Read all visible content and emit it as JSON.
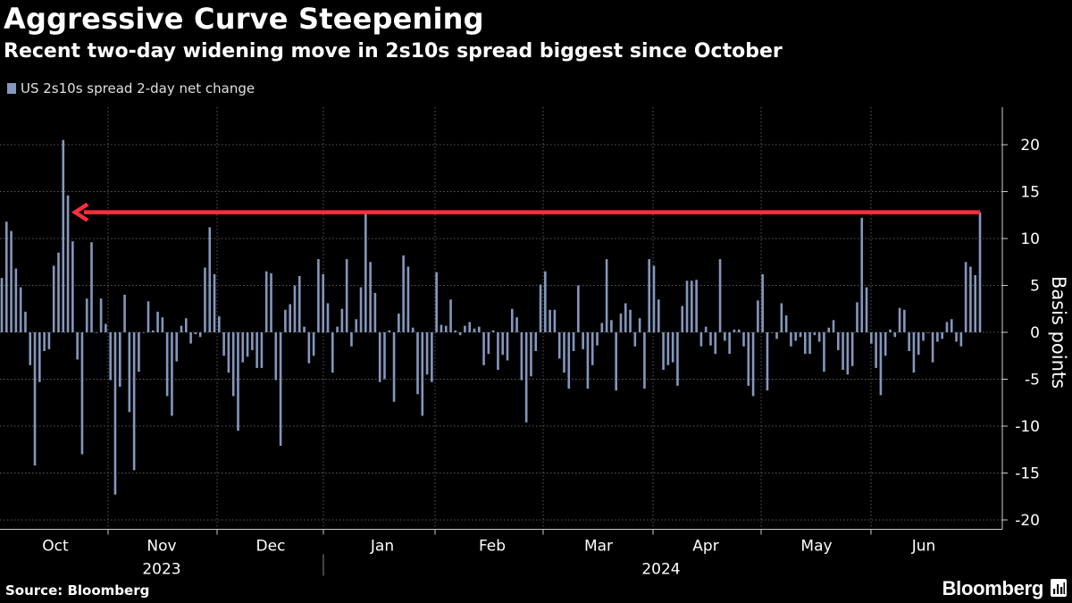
{
  "title": "Aggressive Curve Steepening",
  "subtitle": "Recent two-day widening move in 2s10s spread biggest since October",
  "source": "Source: Bloomberg",
  "brand": "Bloomberg",
  "colors": {
    "background": "#000000",
    "bar": "#8497bd",
    "arrow": "#ff2e3b",
    "text": "#ffffff",
    "grid": "#5a5a5a"
  },
  "chart_data": {
    "type": "bar",
    "title": "Aggressive Curve Steepening",
    "subtitle": "Recent two-day widening move in 2s10s spread biggest since October",
    "legend": [
      "US 2s10s spread 2-day net change"
    ],
    "ylabel": "Basis points",
    "ylim": [
      -21,
      24
    ],
    "yticks": [
      20,
      15,
      10,
      5,
      0,
      -5,
      -10,
      -15,
      -20
    ],
    "month_labels": [
      "Oct",
      "Nov",
      "Dec",
      "Jan",
      "Feb",
      "Mar",
      "Apr",
      "May",
      "Jun"
    ],
    "year_labels": [
      "2023",
      "2024"
    ],
    "x_start": "2023-10-02",
    "x_end": "2024-06-21",
    "annotation": "arrow from latest value back to October high",
    "series": [
      {
        "name": "US 2s10s spread 2-day net change",
        "values": [
          5.8,
          11.8,
          10.8,
          6.8,
          4.8,
          2.2,
          -3.5,
          -14.2,
          -5.3,
          -2.0,
          -1.8,
          7.1,
          8.5,
          20.5,
          14.6,
          9.7,
          -2.9,
          -13.0,
          3.6,
          9.6,
          0.0,
          3.6,
          0.9,
          -5.1,
          -17.3,
          -5.8,
          4.0,
          -8.5,
          -14.7,
          -4.2,
          0.0,
          3.3,
          0.2,
          2.2,
          1.6,
          -6.8,
          -8.9,
          -3.1,
          0.7,
          1.5,
          -1.2,
          -0.2,
          -0.5,
          6.9,
          11.2,
          6.2,
          1.7,
          -2.5,
          -4.3,
          -6.8,
          -10.5,
          -3.2,
          -2.6,
          -1.9,
          -3.8,
          -3.8,
          6.5,
          6.3,
          -5.1,
          -12.1,
          2.4,
          3.0,
          5.0,
          6.0,
          0.6,
          -3.3,
          -2.5,
          7.8,
          6.2,
          3.1,
          -4.3,
          0.6,
          2.5,
          7.8,
          -1.5,
          1.4,
          4.8,
          12.6,
          7.5,
          4.2,
          -5.3,
          -5.0,
          0.2,
          -7.4,
          2.0,
          8.2,
          7.0,
          0.5,
          -6.6,
          -8.9,
          -4.5,
          -5.3,
          6.4,
          0.8,
          0.7,
          3.5,
          0.2,
          -0.3,
          0.7,
          1.1,
          0.4,
          0.6,
          -3.5,
          -2.3,
          0.2,
          -4.0,
          -2.4,
          -3.0,
          2.5,
          1.6,
          -5.1,
          -9.6,
          -4.7,
          -2.0,
          5.1,
          6.5,
          2.4,
          2.4,
          -2.8,
          -4.3,
          -6.0,
          -2.0,
          5.0,
          -1.8,
          -6.0,
          -3.5,
          -1.4,
          1.0,
          7.8,
          1.3,
          -6.2,
          2.0,
          3.1,
          2.4,
          -1.5,
          1.5,
          -6.0,
          7.8,
          7.1,
          3.5,
          -4.0,
          -3.5,
          -3.2,
          -5.7,
          2.8,
          5.5,
          5.5,
          5.6,
          -1.5,
          0.6,
          -1.4,
          -2.3,
          7.8,
          -0.9,
          -2.3,
          0.3,
          0.3,
          -1.5,
          -5.7,
          -6.8,
          3.4,
          6.2,
          -6.2,
          0.0,
          -0.7,
          3.1,
          1.8,
          -1.5,
          -0.9,
          -0.5,
          -2.3,
          -2.3,
          -0.3,
          -1.0,
          -4.2,
          0.5,
          1.3,
          -1.9,
          -4.0,
          -4.5,
          -3.6,
          3.2,
          12.2,
          4.8,
          -1.2,
          -3.8,
          -6.7,
          -2.5,
          0.3,
          -0.5,
          2.6,
          2.4,
          -2.0,
          -4.3,
          -2.4,
          -0.9,
          0.0,
          -3.2,
          -1.0,
          -0.7,
          1.1,
          1.4,
          -1.0,
          -1.5,
          7.5,
          7.0,
          6.1,
          12.8
        ]
      }
    ]
  }
}
